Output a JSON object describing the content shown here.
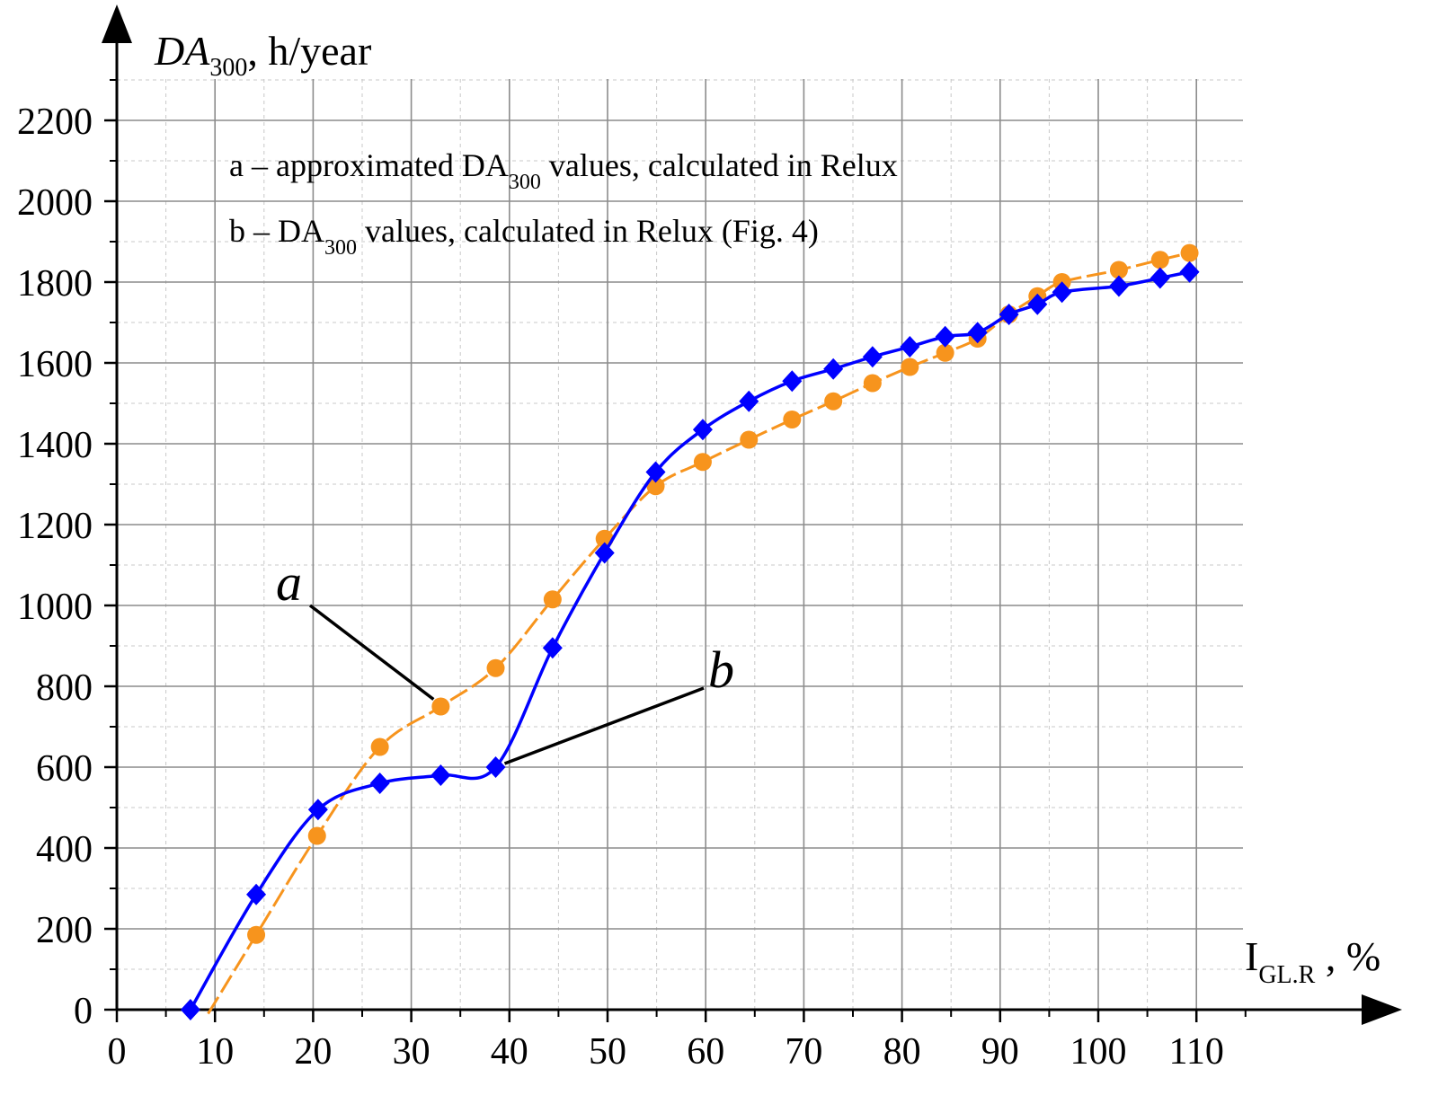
{
  "chart_data": {
    "type": "line",
    "ylabel": {
      "main": "DA",
      "sub": "300",
      "suffix": ", h/year"
    },
    "xlabel": {
      "main": "I",
      "sub": "GL.R",
      "suffix": " , %"
    },
    "xlim": [
      0,
      115
    ],
    "ylim": [
      0,
      2300
    ],
    "x_ticks": [
      0,
      10,
      20,
      30,
      40,
      50,
      60,
      70,
      80,
      90,
      100,
      110
    ],
    "y_ticks": [
      0,
      200,
      400,
      600,
      800,
      1000,
      1200,
      1400,
      1600,
      1800,
      2000,
      2200
    ],
    "x_tick_labels": [
      "0",
      "10",
      "20",
      "30",
      "40",
      "50",
      "60",
      "70",
      "80",
      "90",
      "100",
      "110"
    ],
    "y_tick_labels": [
      "0",
      "200",
      "400",
      "600",
      "800",
      "1000",
      "1200",
      "1400",
      "1600",
      "1800",
      "2000",
      "2200"
    ],
    "grid": true,
    "legend": [
      {
        "prefix": "a – approximated DA",
        "sub": "300",
        "suffix": " values, calculated in Relux"
      },
      {
        "prefix": "b – DA",
        "sub": "300",
        "suffix": " values, calculated in Relux (Fig. 4)"
      }
    ],
    "legend_placement": "top-left",
    "curve_labels": {
      "a": "a",
      "b": "b"
    },
    "series": [
      {
        "id": "a",
        "color": "#F7941D",
        "marker": "circle",
        "line_style": "dashed-smooth",
        "points": [
          [
            9.3,
            -10
          ],
          [
            14.2,
            185
          ],
          [
            20.4,
            430
          ],
          [
            26.8,
            650
          ],
          [
            33,
            750
          ],
          [
            38.6,
            845
          ],
          [
            44.4,
            1015
          ],
          [
            49.7,
            1165
          ],
          [
            54.9,
            1295
          ],
          [
            59.7,
            1355
          ],
          [
            64.4,
            1410
          ],
          [
            68.8,
            1460
          ],
          [
            73,
            1505
          ],
          [
            77,
            1550
          ],
          [
            80.8,
            1590
          ],
          [
            84.4,
            1625
          ],
          [
            87.7,
            1660
          ],
          [
            90.9,
            1720
          ],
          [
            93.8,
            1765
          ],
          [
            96.3,
            1800
          ],
          [
            102.1,
            1830
          ],
          [
            106.3,
            1855
          ],
          [
            109.3,
            1872
          ]
        ]
      },
      {
        "id": "b",
        "color": "#0000FF",
        "marker": "diamond",
        "line_style": "solid-smooth",
        "points": [
          [
            7.5,
            0
          ],
          [
            14.2,
            285
          ],
          [
            20.5,
            495
          ],
          [
            26.8,
            560
          ],
          [
            33,
            580
          ],
          [
            38.6,
            600
          ],
          [
            44.4,
            895
          ],
          [
            49.7,
            1130
          ],
          [
            54.9,
            1330
          ],
          [
            59.7,
            1435
          ],
          [
            64.4,
            1505
          ],
          [
            68.8,
            1555
          ],
          [
            73,
            1585
          ],
          [
            77,
            1615
          ],
          [
            80.8,
            1640
          ],
          [
            84.4,
            1665
          ],
          [
            87.7,
            1675
          ],
          [
            90.9,
            1720
          ],
          [
            93.8,
            1745
          ],
          [
            96.3,
            1775
          ],
          [
            102.1,
            1790
          ],
          [
            106.3,
            1810
          ],
          [
            109.3,
            1825
          ]
        ]
      }
    ]
  }
}
